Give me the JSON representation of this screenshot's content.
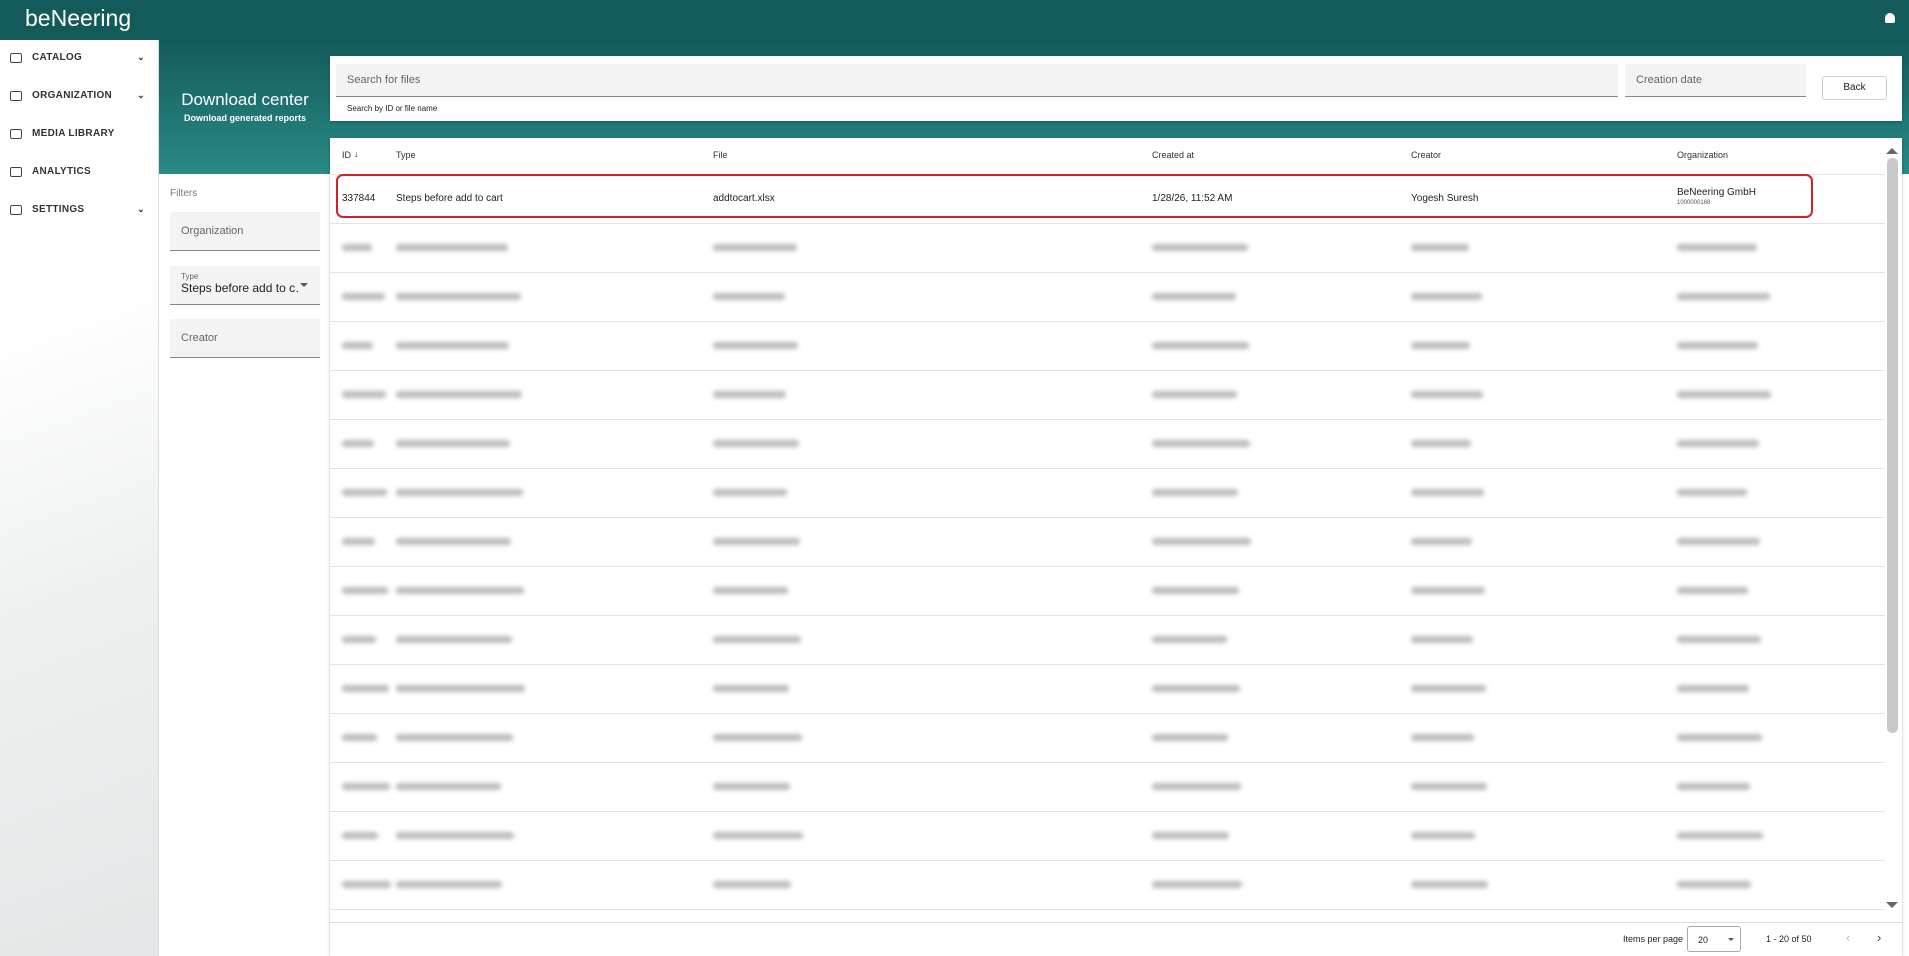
{
  "header": {
    "logo": "beNeering"
  },
  "nav": [
    {
      "label": "CATALOG"
    },
    {
      "label": "ORGANIZATION"
    },
    {
      "label": "MEDIA LIBRARY"
    },
    {
      "label": "ANALYTICS"
    },
    {
      "label": "SETTINGS"
    }
  ],
  "page": {
    "title": "Download center",
    "subtitle": "Download generated reports"
  },
  "filters": {
    "label": "Filters",
    "organization": "Organization",
    "type_label": "Type",
    "type_value": "Steps before add to c…",
    "creator": "Creator"
  },
  "search": {
    "placeholder": "Search for files",
    "hint": "Search by ID or file name",
    "date": "Creation date",
    "back": "Back"
  },
  "table": {
    "columns": [
      "ID",
      "Type",
      "File",
      "Created at",
      "Creator",
      "Organization"
    ],
    "rows": [
      [
        "337844",
        "Steps before add to cart",
        "addtocart.xlsx",
        "1/28/26, 11:52 AM",
        "Yogesh Suresh",
        "BeNeering GmbH",
        "1000000168"
      ]
    ]
  },
  "pagination": {
    "items_label": "Items per page",
    "page_size": "20",
    "range": "1 - 20 of 50"
  }
}
